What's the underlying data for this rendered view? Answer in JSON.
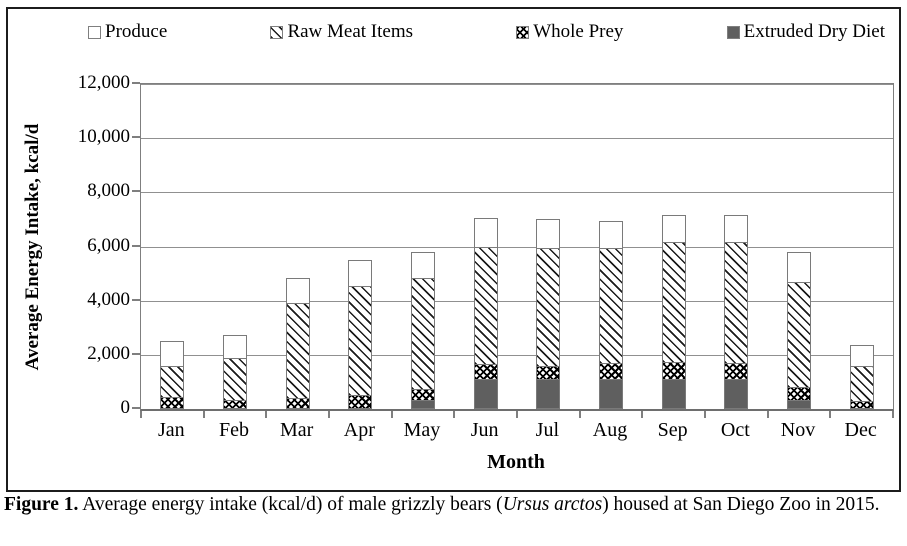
{
  "figure": {
    "caption": {
      "label": "Figure 1.",
      "text_before_italic": " Average energy intake (kcal/d) of male grizzly bears (",
      "italic": "Ursus arctos",
      "text_after_italic": ") housed at San Diego Zoo in 2015."
    }
  },
  "legend": {
    "position": "top",
    "items": [
      {
        "label": "Produce",
        "pattern": "white"
      },
      {
        "label": "Raw Meat Items",
        "pattern": "diagonal-hatch"
      },
      {
        "label": "Whole Prey",
        "pattern": "diagonal-crosshatch"
      },
      {
        "label": "Extruded Dry Diet",
        "pattern": "solid-gray"
      }
    ]
  },
  "chart_data": {
    "type": "bar",
    "stacked": true,
    "title": "",
    "xlabel": "Month",
    "ylabel": "Average Energy Intake, kcal/d",
    "ylim": [
      0,
      12000
    ],
    "ytick_interval": 2000,
    "ytick_labels": [
      "0",
      "2,000",
      "4,000",
      "6,000",
      "8,000",
      "10,000",
      "12,000"
    ],
    "grid": "horizontal",
    "categories": [
      "Jan",
      "Feb",
      "Mar",
      "Apr",
      "May",
      "Jun",
      "Jul",
      "Aug",
      "Sep",
      "Oct",
      "Nov",
      "Dec"
    ],
    "series": [
      {
        "name": "Extruded Dry Diet",
        "pattern": "solid-gray",
        "values": [
          0,
          0,
          0,
          0,
          350,
          1100,
          1100,
          1100,
          1100,
          1100,
          350,
          0
        ]
      },
      {
        "name": "Whole Prey",
        "pattern": "diagonal-crosshatch",
        "values": [
          450,
          350,
          400,
          500,
          400,
          550,
          500,
          600,
          650,
          600,
          450,
          300
        ]
      },
      {
        "name": "Raw Meat Items",
        "pattern": "diagonal-hatch",
        "values": [
          1150,
          1550,
          3500,
          4050,
          4100,
          4350,
          4350,
          4250,
          4400,
          4450,
          3900,
          1300
        ]
      },
      {
        "name": "Produce",
        "pattern": "white",
        "values": [
          900,
          850,
          950,
          950,
          950,
          1050,
          1050,
          1000,
          1000,
          1000,
          1100,
          750
        ]
      }
    ],
    "totals": [
      2500,
      2750,
      4850,
      5500,
      5800,
      7050,
      7000,
      6950,
      7150,
      7150,
      5800,
      2350
    ]
  },
  "style": {
    "axis_gray": "#7f7f7f",
    "solid_fill": "#5f5f5f",
    "frame_black": "#1c1c1c"
  }
}
